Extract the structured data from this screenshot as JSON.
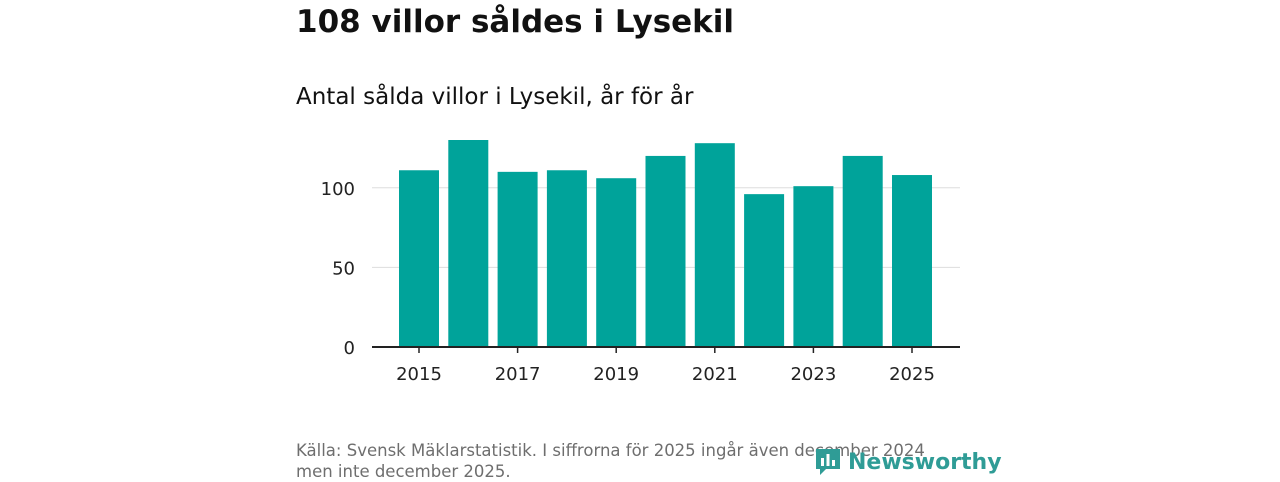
{
  "header": {
    "title": "108 villor såldes i Lysekil",
    "subtitle": "Antal sålda villor i Lysekil, år för år"
  },
  "chart_data": {
    "type": "bar",
    "categories": [
      "2015",
      "2016",
      "2017",
      "2018",
      "2019",
      "2020",
      "2021",
      "2022",
      "2023",
      "2024",
      "2025"
    ],
    "values": [
      111,
      130,
      110,
      111,
      106,
      120,
      128,
      96,
      101,
      120,
      108
    ],
    "x_tick_labels": [
      "2015",
      "2017",
      "2019",
      "2021",
      "2023",
      "2025"
    ],
    "y_ticks": [
      0,
      50,
      100
    ],
    "y_tick_labels": [
      "0",
      "50",
      "100"
    ],
    "ylim": [
      0,
      130
    ],
    "grid": true,
    "bar_color": "#00a39a",
    "title": "Antal sålda villor i Lysekil, år för år",
    "xlabel": "",
    "ylabel": ""
  },
  "footer": {
    "source": "Källa: Svensk Mäklarstatistik. I siffrorna för 2025 ingår även december 2024 men inte december 2025.",
    "brand": "Newsworthy"
  },
  "colors": {
    "brand": "#2f9c96",
    "gridline": "#dddddd",
    "axis": "#222222"
  }
}
